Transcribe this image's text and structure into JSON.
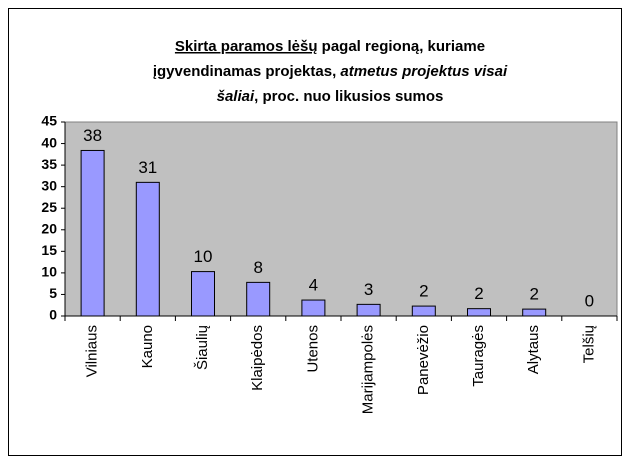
{
  "chart_data": {
    "type": "bar",
    "title": [
      "Skirta paramos lėšų",
      "pagal regioną, kuriame",
      "įgyvendinamas projektas,",
      "atmetus projektus visai",
      "šaliai",
      ", proc. nuo likusios sumos"
    ],
    "categories": [
      "Vilniaus",
      "Kauno",
      "Šiaulių",
      "Klaipėdos",
      "Utenos",
      "Marijampolės",
      "Panevėžio",
      "Tauragės",
      "Alytaus",
      "Telšių"
    ],
    "values": [
      38.4,
      31,
      10.3,
      7.8,
      3.7,
      2.7,
      2.3,
      1.7,
      1.6,
      0
    ],
    "value_labels": [
      "38",
      "31",
      "10",
      "8",
      "4",
      "3",
      "2",
      "2",
      "2",
      "0"
    ],
    "color": "#9999ff",
    "ylim": [
      0,
      45
    ],
    "yticks": [
      0,
      5,
      10,
      15,
      20,
      25,
      30,
      35,
      40,
      45
    ]
  }
}
